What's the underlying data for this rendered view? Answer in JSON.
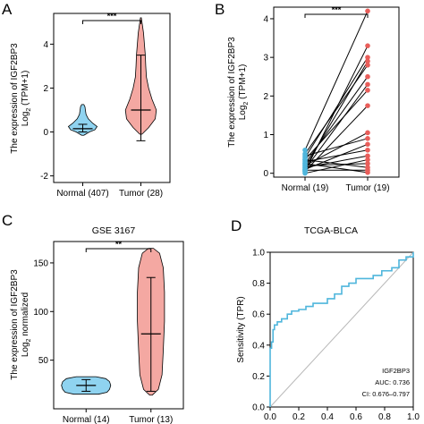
{
  "panel_letters": [
    "A",
    "B",
    "C",
    "D"
  ],
  "chart_data": [
    {
      "panel": "A",
      "type": "violin",
      "title": "",
      "ylabel_line1": "The expression of IGF2BP3",
      "ylabel_line2_main": "Log",
      "ylabel_line2_sub": "2",
      "ylabel_line2_rest": " (TPM+1)",
      "ylim": [
        -2.3,
        5.4
      ],
      "yticks": [
        -2,
        0,
        2,
        4
      ],
      "categories": [
        "Normal (407)",
        "Tumor (28)"
      ],
      "significance": "***",
      "series": [
        {
          "name": "Normal (407)",
          "color": "#8fd3f0",
          "median": 0.15,
          "q1": 0.0,
          "q3": 0.35,
          "min": -0.15,
          "max": 1.25,
          "profile": [
            [
              -0.15,
              0.05
            ],
            [
              0.0,
              0.3
            ],
            [
              0.1,
              0.55
            ],
            [
              0.25,
              0.65
            ],
            [
              0.4,
              0.45
            ],
            [
              0.6,
              0.25
            ],
            [
              0.8,
              0.15
            ],
            [
              1.0,
              0.12
            ],
            [
              1.15,
              0.1
            ],
            [
              1.25,
              0.05
            ]
          ]
        },
        {
          "name": "Tumor (28)",
          "color": "#f4a8a2",
          "median": 1.0,
          "q1": -0.4,
          "q3": 3.5,
          "min": -1.5,
          "max": 5.2,
          "profile": [
            [
              -0.1,
              0.05
            ],
            [
              0.2,
              0.35
            ],
            [
              0.6,
              0.65
            ],
            [
              1.0,
              0.7
            ],
            [
              1.5,
              0.5
            ],
            [
              2.0,
              0.35
            ],
            [
              2.5,
              0.25
            ],
            [
              3.0,
              0.22
            ],
            [
              3.5,
              0.2
            ],
            [
              4.0,
              0.16
            ],
            [
              4.5,
              0.12
            ],
            [
              5.0,
              0.05
            ],
            [
              5.2,
              0.02
            ]
          ]
        }
      ]
    },
    {
      "panel": "B",
      "type": "paired-dot",
      "title": "",
      "ylabel_line1": "The expression of IGF2BP3",
      "ylabel_line2_main": "Log",
      "ylabel_line2_sub": "2",
      "ylabel_line2_rest": " (TPM+1)",
      "ylim": [
        -0.1,
        4.3
      ],
      "yticks": [
        0,
        1,
        2,
        3,
        4
      ],
      "categories": [
        "Normal (19)",
        "Tumor (19)"
      ],
      "significance": "***",
      "normal_color": "#4fb6dc",
      "tumor_color": "#e95e5a",
      "pairs": [
        [
          0.6,
          4.2
        ],
        [
          0.05,
          3.3
        ],
        [
          0.4,
          3.0
        ],
        [
          0.15,
          2.9
        ],
        [
          0.5,
          2.8
        ],
        [
          0.25,
          2.5
        ],
        [
          0.1,
          2.3
        ],
        [
          0.35,
          2.15
        ],
        [
          0.05,
          1.75
        ],
        [
          0.2,
          1.05
        ],
        [
          0.45,
          0.9
        ],
        [
          0.1,
          0.75
        ],
        [
          0.3,
          0.6
        ],
        [
          0.15,
          0.45
        ],
        [
          0.0,
          0.35
        ],
        [
          0.2,
          0.25
        ],
        [
          0.35,
          0.15
        ],
        [
          0.08,
          0.08
        ],
        [
          0.25,
          0.02
        ]
      ]
    },
    {
      "panel": "C",
      "type": "violin",
      "title": "GSE 3167",
      "ylabel_line1": "The expression of IGF2BP3",
      "ylabel_line2_main": "Log",
      "ylabel_line2_sub": "2",
      "ylabel_line2_rest": " normalized",
      "ylim": [
        0,
        172
      ],
      "yticks": [
        50,
        100,
        150
      ],
      "categories": [
        "Normal (14)",
        "Tumor (13)"
      ],
      "significance": "**",
      "series": [
        {
          "name": "Normal (14)",
          "color": "#8fd3f0",
          "median": 24,
          "q1": 18,
          "q3": 30,
          "min": 15,
          "max": 33,
          "profile": [
            [
              15,
              0.5
            ],
            [
              17,
              0.85
            ],
            [
              20,
              0.95
            ],
            [
              24,
              1.0
            ],
            [
              28,
              0.95
            ],
            [
              31,
              0.8
            ],
            [
              33,
              0.4
            ]
          ]
        },
        {
          "name": "Tumor (13)",
          "color": "#f4a8a2",
          "median": 77,
          "q1": 18,
          "q3": 135,
          "min": 15,
          "max": 165,
          "profile": [
            [
              14,
              0.05
            ],
            [
              20,
              0.3
            ],
            [
              35,
              0.45
            ],
            [
              60,
              0.5
            ],
            [
              90,
              0.55
            ],
            [
              120,
              0.55
            ],
            [
              145,
              0.5
            ],
            [
              160,
              0.35
            ],
            [
              165,
              0.1
            ]
          ]
        }
      ]
    },
    {
      "panel": "D",
      "type": "roc",
      "title": "TCGA-BLCA",
      "ylabel": "Sensitivity (TPR)",
      "xlim": [
        0,
        1
      ],
      "ylim": [
        0,
        1
      ],
      "ticks": [
        "0.0",
        "0.2",
        "0.4",
        "0.6",
        "0.8",
        "1.0"
      ],
      "xtick_labels": [
        "0.0",
        "0.2",
        "0.4",
        "0.6",
        "0.8",
        "1.0"
      ],
      "legend_lines": [
        "IGF2BP3",
        "AUC: 0.736",
        "CI: 0.676–0.797"
      ],
      "curve_color": "#4fb6dc",
      "curve": [
        [
          0.0,
          0.0
        ],
        [
          0.0,
          0.38
        ],
        [
          0.01,
          0.38
        ],
        [
          0.01,
          0.42
        ],
        [
          0.02,
          0.42
        ],
        [
          0.02,
          0.5
        ],
        [
          0.03,
          0.5
        ],
        [
          0.03,
          0.53
        ],
        [
          0.05,
          0.53
        ],
        [
          0.05,
          0.55
        ],
        [
          0.08,
          0.55
        ],
        [
          0.08,
          0.57
        ],
        [
          0.12,
          0.57
        ],
        [
          0.12,
          0.6
        ],
        [
          0.15,
          0.6
        ],
        [
          0.15,
          0.62
        ],
        [
          0.2,
          0.62
        ],
        [
          0.2,
          0.63
        ],
        [
          0.25,
          0.63
        ],
        [
          0.25,
          0.65
        ],
        [
          0.3,
          0.65
        ],
        [
          0.3,
          0.67
        ],
        [
          0.4,
          0.67
        ],
        [
          0.4,
          0.7
        ],
        [
          0.45,
          0.7
        ],
        [
          0.45,
          0.73
        ],
        [
          0.5,
          0.73
        ],
        [
          0.5,
          0.78
        ],
        [
          0.55,
          0.78
        ],
        [
          0.55,
          0.8
        ],
        [
          0.6,
          0.8
        ],
        [
          0.6,
          0.83
        ],
        [
          0.72,
          0.83
        ],
        [
          0.72,
          0.85
        ],
        [
          0.78,
          0.85
        ],
        [
          0.78,
          0.88
        ],
        [
          0.85,
          0.88
        ],
        [
          0.85,
          0.9
        ],
        [
          0.9,
          0.9
        ],
        [
          0.9,
          0.95
        ],
        [
          0.95,
          0.95
        ],
        [
          0.95,
          0.97
        ],
        [
          1.0,
          0.97
        ],
        [
          1.0,
          1.0
        ]
      ]
    }
  ]
}
